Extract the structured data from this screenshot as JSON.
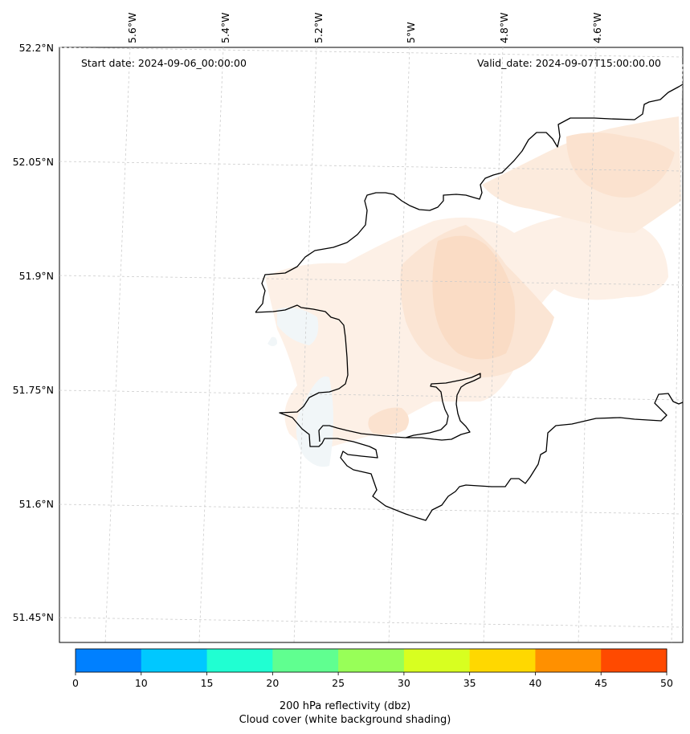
{
  "header": {
    "start_label": "Start date: 2024-09-06_00:00:00",
    "valid_label": "Valid_date: 2024-09-07T15:00:00.00"
  },
  "axes": {
    "lon_labels": [
      "5.6°W",
      "5.4°W",
      "5.2°W",
      "5°W",
      "4.8°W",
      "4.6°W"
    ],
    "lat_labels": [
      "52.2°N",
      "52.05°N",
      "51.9°N",
      "51.75°N",
      "51.6°N",
      "51.45°N"
    ]
  },
  "colorbar": {
    "title_line1": "200 hPa reflectivity (dbz)",
    "title_line2": "Cloud cover (white background shading)",
    "ticks": [
      "0",
      "10",
      "15",
      "20",
      "25",
      "30",
      "35",
      "40",
      "45",
      "50"
    ],
    "colors": [
      "#0080ff",
      "#00c8ff",
      "#20ffd2",
      "#60ff90",
      "#98ff58",
      "#d8ff20",
      "#ffd800",
      "#ff9000",
      "#ff4a00"
    ]
  },
  "colors": {
    "coastline": "#000000",
    "gridline": "#cccccc",
    "cloud_shading": "#fbe3cf"
  }
}
